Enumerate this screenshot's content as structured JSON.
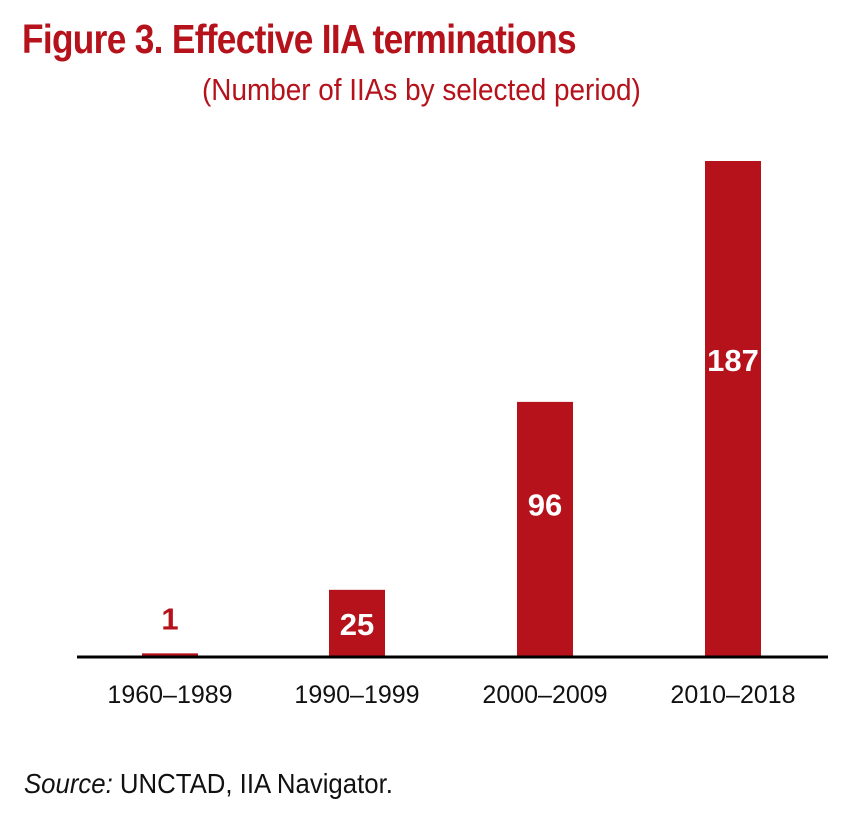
{
  "colors": {
    "accent": "#b5121b",
    "text": "#111111",
    "axis": "#000000",
    "label_on_bar": "#ffffff"
  },
  "chart_data": {
    "type": "bar",
    "title": "Figure 3. Effective IIA terminations",
    "subtitle": "(Number of IIAs by selected period)",
    "categories": [
      "1960–1989",
      "1990–1999",
      "2000–2009",
      "2010–2018"
    ],
    "values": [
      1,
      25,
      96,
      187
    ],
    "data_labels": [
      "1",
      "25",
      "96",
      "187"
    ],
    "xlabel": "",
    "ylabel": "",
    "ylim": [
      0,
      187
    ],
    "grid": false,
    "legend": "none"
  },
  "source": {
    "label": "Source:",
    "text": " UNCTAD, IIA Navigator."
  }
}
